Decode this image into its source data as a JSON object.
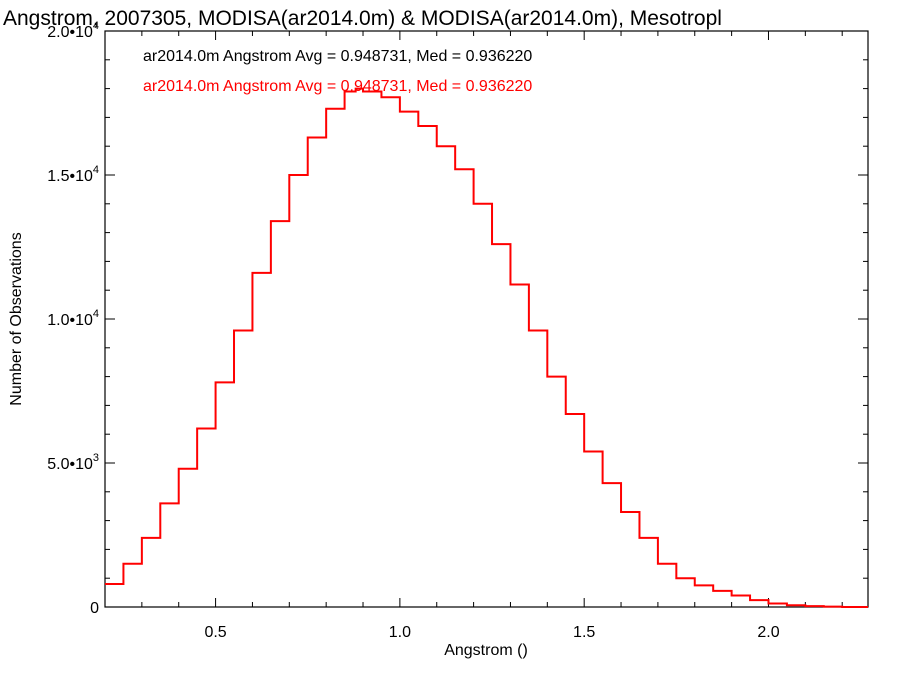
{
  "chart_data": {
    "type": "line",
    "style": "step",
    "title": "Angstrom, 2007305, MODISA(ar2014.0m) & MODISA(ar2014.0m), Mesotropl",
    "xlabel": "Angstrom ()",
    "ylabel": "Number of Observations",
    "xlim": [
      0.2,
      2.27
    ],
    "ylim": [
      0,
      20000
    ],
    "x_ticks": [
      {
        "value": 0.5,
        "label": "0.5"
      },
      {
        "value": 1.0,
        "label": "1.0"
      },
      {
        "value": 1.5,
        "label": "1.5"
      },
      {
        "value": 2.0,
        "label": "2.0"
      }
    ],
    "y_ticks": [
      {
        "value": 0,
        "mant": "0",
        "exp": ""
      },
      {
        "value": 5000,
        "mant": "5.0•10",
        "exp": "3"
      },
      {
        "value": 10000,
        "mant": "1.0•10",
        "exp": "4"
      },
      {
        "value": 15000,
        "mant": "1.5•10",
        "exp": "4"
      },
      {
        "value": 20000,
        "mant": "2.0•10",
        "exp": "4"
      }
    ],
    "grid": false,
    "annotations": [
      {
        "text": "ar2014.0m Angstrom Avg = 0.948731, Med = 0.936220",
        "color": "#000000"
      },
      {
        "text": "ar2014.0m Angstrom Avg = 0.948731, Med = 0.936220",
        "color": "#ff0000"
      }
    ],
    "series": [
      {
        "color": "#ff0000",
        "x": [
          0.2,
          0.25,
          0.3,
          0.35,
          0.4,
          0.45,
          0.5,
          0.55,
          0.6,
          0.65,
          0.7,
          0.75,
          0.8,
          0.85,
          0.88,
          0.9,
          0.95,
          1.0,
          1.05,
          1.1,
          1.15,
          1.2,
          1.25,
          1.3,
          1.35,
          1.4,
          1.45,
          1.5,
          1.55,
          1.6,
          1.65,
          1.7,
          1.75,
          1.8,
          1.85,
          1.9,
          1.95,
          2.0,
          2.05,
          2.1,
          2.15,
          2.2,
          2.27
        ],
        "values": [
          800,
          1500,
          2400,
          3600,
          4800,
          6200,
          7800,
          9600,
          11600,
          13400,
          15000,
          16300,
          17300,
          17900,
          18000,
          17900,
          17700,
          17200,
          16700,
          16000,
          15200,
          14000,
          12600,
          11200,
          9600,
          8000,
          6700,
          5400,
          4300,
          3300,
          2400,
          1500,
          1000,
          750,
          560,
          400,
          240,
          120,
          60,
          30,
          15,
          0,
          0
        ]
      }
    ]
  }
}
